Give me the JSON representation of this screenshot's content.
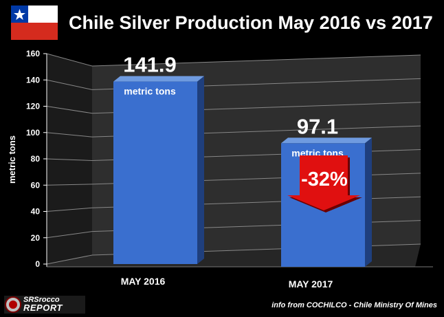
{
  "header": {
    "title": "Chile Silver Production May 2016 vs 2017",
    "flag_icon": "chile-flag-icon"
  },
  "chart_data": {
    "type": "bar",
    "title": "Chile Silver Production May 2016 vs 2017",
    "categories": [
      "MAY 2016",
      "MAY 2017"
    ],
    "values": [
      141.9,
      97.1
    ],
    "value_labels": [
      "141.9",
      "97.1"
    ],
    "unit_labels": [
      "metric tons",
      "metric tons"
    ],
    "xlabel": "",
    "ylabel": "metric tons",
    "ylim": [
      0,
      160
    ],
    "yticks": [
      0,
      20,
      40,
      60,
      80,
      100,
      120,
      140,
      160
    ],
    "ytick_labels": [
      "0",
      "20",
      "40",
      "60",
      "80",
      "100",
      "120",
      "140",
      "160"
    ],
    "grid": true,
    "legend": "none",
    "style": "3d",
    "annotation": {
      "text": "-32%",
      "shape": "down-arrow",
      "category": "MAY 2017",
      "color": "#e01010"
    },
    "colors": {
      "bar_front": "#3a6fcf",
      "bar_side": "#1f3f7d",
      "bar_top": "#6f9be0",
      "background_wall": "#2e2e2e",
      "floor": "#262626",
      "grid": "#888888"
    }
  },
  "footer": {
    "logo_line1": "SRSrocco",
    "logo_line2": "REPORT",
    "logo_icon": "srsrocco-logo-icon",
    "source": "info from COCHILCO - Chile Ministry Of Mines"
  }
}
